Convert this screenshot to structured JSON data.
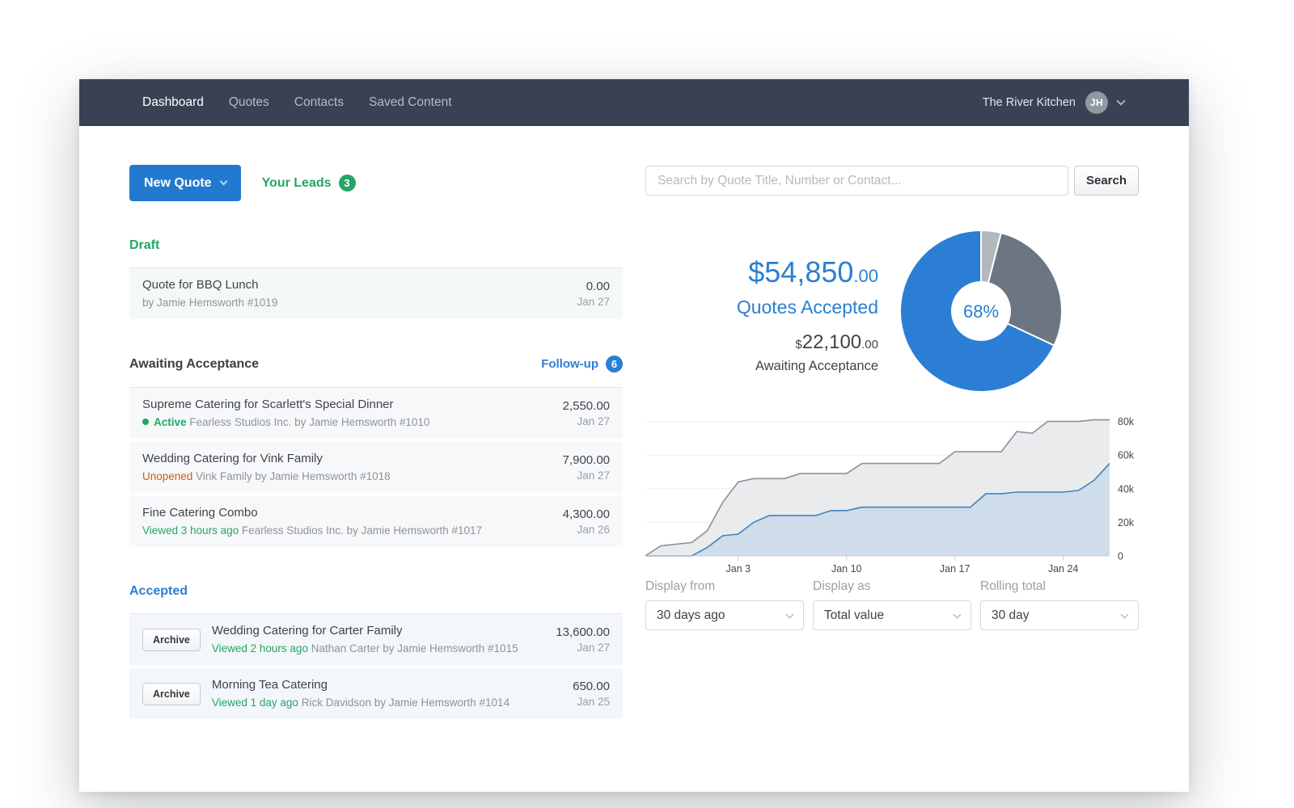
{
  "palette": {
    "blue": "#2a7fd2",
    "green": "#26a566",
    "orange": "#c2611e",
    "nav_bg": "#394253"
  },
  "nav": {
    "items": [
      {
        "label": "Dashboard",
        "active": true
      },
      {
        "label": "Quotes",
        "active": false
      },
      {
        "label": "Contacts",
        "active": false
      },
      {
        "label": "Saved Content",
        "active": false
      }
    ],
    "account": {
      "name": "The River Kitchen",
      "initials": "JH"
    }
  },
  "toolbar": {
    "new_quote_label": "New Quote",
    "your_leads_label": "Your Leads",
    "your_leads_count": "3"
  },
  "sections": [
    {
      "id": "draft",
      "title": "Draft",
      "title_color": "#26a566",
      "row_bg": "#f3faf6",
      "rows": [
        {
          "title": "Quote for BBQ Lunch",
          "status": "",
          "status_color": "",
          "dot": false,
          "meta": "by Jamie Hemsworth #1019",
          "amount": "0.00",
          "date": "Jan 27"
        }
      ]
    },
    {
      "id": "awaiting-acceptance",
      "title": "Awaiting Acceptance",
      "title_color": "#3a3f45",
      "row_bg": "#f7f8f9",
      "link": {
        "label": "Follow-up",
        "count": "6"
      },
      "rows": [
        {
          "title": "Supreme Catering for Scarlett's Special Dinner",
          "status": "Active",
          "status_color": "#26a566",
          "status_bold": true,
          "dot": true,
          "meta": "Fearless Studios Inc. by Jamie Hemsworth #1010",
          "amount": "2,550.00",
          "date": "Jan 27"
        },
        {
          "title": "Wedding Catering for Vink Family",
          "status": "Unopened",
          "status_color": "#c2611e",
          "status_bold": false,
          "dot": false,
          "meta": "Vink Family by Jamie Hemsworth #1018",
          "amount": "7,900.00",
          "date": "Jan 27"
        },
        {
          "title": "Fine Catering Combo",
          "status": "Viewed 3 hours ago",
          "status_color": "#26a566",
          "status_bold": false,
          "dot": false,
          "meta": "Fearless Studios Inc. by Jamie Hemsworth #1017",
          "amount": "4,300.00",
          "date": "Jan 26"
        }
      ]
    },
    {
      "id": "accepted",
      "title": "Accepted",
      "title_color": "#2a7fd2",
      "row_bg": "#f3f6fa",
      "row_action_label": "Archive",
      "rows": [
        {
          "title": "Wedding Catering for Carter Family",
          "status": "Viewed 2 hours ago",
          "status_color": "#26a566",
          "status_bold": false,
          "dot": false,
          "meta": "Nathan Carter by Jamie Hemsworth #1015",
          "amount": "13,600.00",
          "date": "Jan 27"
        },
        {
          "title": "Morning Tea Catering",
          "status": "Viewed 1 day ago",
          "status_color": "#26a566",
          "status_bold": false,
          "dot": false,
          "meta": "Rick Davidson by Jamie Hemsworth #1014",
          "amount": "650.00",
          "date": "Jan 25"
        }
      ]
    }
  ],
  "search": {
    "placeholder": "Search by Quote Title, Number or Contact...",
    "button_label": "Search"
  },
  "stats": {
    "accepted_amount": "$54,850",
    "accepted_cents": ".00",
    "accepted_label": "Quotes Accepted",
    "awaiting_currency": "$",
    "awaiting_amount": "22,100",
    "awaiting_cents": ".00",
    "awaiting_label": "Awaiting Acceptance"
  },
  "chart_data": [
    {
      "type": "pie",
      "style": "donut",
      "center_label": "68%",
      "center_label_color": "#2a7fd2",
      "start": "top",
      "direction": "clockwise",
      "slices": [
        {
          "name": "other",
          "pct": 4,
          "color": "#b2b8bf"
        },
        {
          "name": "awaiting-acceptance",
          "pct": 28,
          "color": "#6c7682"
        },
        {
          "name": "quotes-accepted",
          "pct": 68,
          "color": "#2b7ed3"
        }
      ]
    },
    {
      "type": "area",
      "title": "",
      "xlabel": "",
      "ylabel": "",
      "x_range": [
        0,
        30
      ],
      "x_tick_positions": [
        6,
        13,
        20,
        27
      ],
      "x_tick_labels": [
        "Jan 3",
        "Jan 10",
        "Jan 17",
        "Jan 24"
      ],
      "y_tick_values": [
        0,
        20000,
        40000,
        60000,
        80000
      ],
      "y_tick_labels": [
        "0",
        "20k",
        "40k",
        "60k",
        "80k"
      ],
      "ylim": [
        0,
        88000
      ],
      "grid": true,
      "legend": "none",
      "series": [
        {
          "name": "total",
          "color": "#8b9199",
          "fill": "#e9ebed",
          "values": [
            0,
            6000,
            7000,
            8000,
            15000,
            32000,
            44000,
            46000,
            46000,
            46000,
            49000,
            49000,
            49000,
            49000,
            55000,
            55000,
            55000,
            55000,
            55000,
            55000,
            62000,
            62000,
            62000,
            62000,
            74000,
            73000,
            80000,
            80000,
            80000,
            81000,
            81000
          ]
        },
        {
          "name": "accepted",
          "color": "#3f82c4",
          "fill": "#cfdce9",
          "values": [
            0,
            0,
            0,
            0,
            5000,
            12000,
            13000,
            20000,
            24000,
            24000,
            24000,
            24000,
            27000,
            27000,
            29000,
            29000,
            29000,
            29000,
            29000,
            29000,
            29000,
            29000,
            37000,
            37000,
            38000,
            38000,
            38000,
            38000,
            39000,
            45000,
            55000
          ]
        }
      ]
    }
  ],
  "filters": [
    {
      "label": "Display from",
      "value": "30 days ago"
    },
    {
      "label": "Display as",
      "value": "Total value"
    },
    {
      "label": "Rolling total",
      "value": "30 day"
    }
  ]
}
